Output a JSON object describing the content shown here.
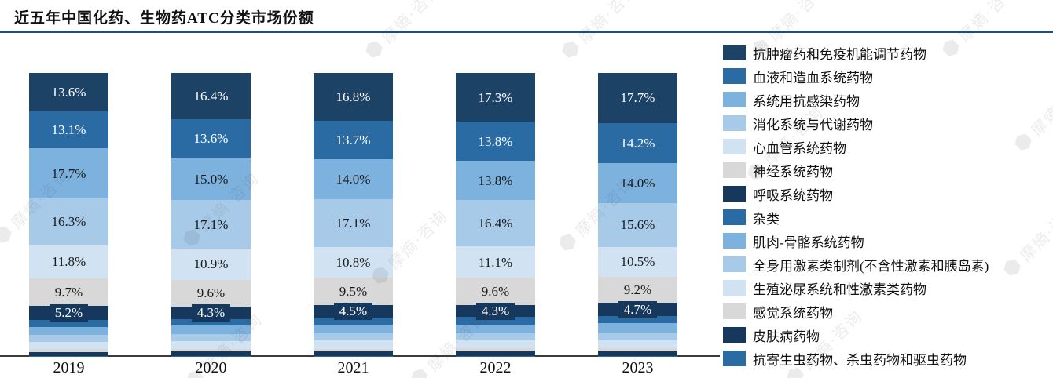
{
  "title": "近五年中国化药、生物药ATC分类市场份额",
  "watermark": {
    "text": "摩熵·咨询",
    "badge": "⬢"
  },
  "chart_data": {
    "type": "bar",
    "stacked": true,
    "title": "近五年中国化药、生物药ATC分类市场份额",
    "xlabel": "",
    "ylabel": "",
    "ylim": [
      0,
      100
    ],
    "grid": false,
    "legend_position": "right",
    "value_suffix": "%",
    "categories": [
      "2019",
      "2020",
      "2021",
      "2022",
      "2023"
    ],
    "series": [
      {
        "name": "抗肿瘤药和免疫机能调节药物",
        "color": "#1C4265",
        "label_color": "#FFFFFF",
        "labeled": true,
        "boxed": false,
        "values": [
          13.6,
          16.4,
          16.8,
          17.3,
          17.7
        ]
      },
      {
        "name": "血液和造血系统药物",
        "color": "#2B6BA4",
        "label_color": "#FFFFFF",
        "labeled": true,
        "boxed": false,
        "values": [
          13.1,
          13.6,
          13.7,
          13.8,
          14.2
        ]
      },
      {
        "name": "系统用抗感染药物",
        "color": "#7DB2DE",
        "label_color": "#1A1A1A",
        "labeled": true,
        "boxed": false,
        "values": [
          17.7,
          15.0,
          14.0,
          13.8,
          14.0
        ]
      },
      {
        "name": "消化系统与代谢药物",
        "color": "#A8CAE9",
        "label_color": "#1A1A1A",
        "labeled": true,
        "boxed": false,
        "values": [
          16.3,
          17.1,
          17.1,
          16.4,
          15.6
        ]
      },
      {
        "name": "心血管系统药物",
        "color": "#D1E2F3",
        "label_color": "#1A1A1A",
        "labeled": true,
        "boxed": false,
        "values": [
          11.8,
          10.9,
          10.8,
          11.1,
          10.5
        ]
      },
      {
        "name": "神经系统药物",
        "color": "#D8D8D8",
        "label_color": "#1A1A1A",
        "labeled": true,
        "boxed": false,
        "values": [
          9.7,
          9.6,
          9.5,
          9.6,
          9.2
        ]
      },
      {
        "name": "呼吸系统药物",
        "color": "#16385D",
        "label_color": "#FFFFFF",
        "labeled": true,
        "boxed": true,
        "values": [
          5.2,
          4.3,
          4.5,
          4.3,
          4.7
        ]
      },
      {
        "name": "杂类",
        "color": "#2B6BA4",
        "label_color": "#FFFFFF",
        "labeled": false,
        "boxed": false,
        "values": [
          2.3,
          2.4,
          2.5,
          2.5,
          2.6
        ]
      },
      {
        "name": "肌肉-骨骼系统药物",
        "color": "#7DB2DE",
        "label_color": "#1A1A1A",
        "labeled": false,
        "boxed": false,
        "values": [
          2.9,
          3.0,
          3.1,
          3.1,
          3.2
        ]
      },
      {
        "name": "全身用激素类制剂(不含性激素和胰岛素)",
        "color": "#A8CAE9",
        "label_color": "#1A1A1A",
        "labeled": false,
        "boxed": false,
        "values": [
          2.4,
          2.5,
          2.6,
          2.6,
          2.7
        ]
      },
      {
        "name": "生殖泌尿系统和性激素类药物",
        "color": "#D1E2F3",
        "label_color": "#1A1A1A",
        "labeled": false,
        "boxed": false,
        "values": [
          2.6,
          2.7,
          2.8,
          2.8,
          2.9
        ]
      },
      {
        "name": "感觉系统药物",
        "color": "#D8D8D8",
        "label_color": "#1A1A1A",
        "labeled": false,
        "boxed": false,
        "values": [
          0.9,
          0.9,
          1.0,
          1.0,
          1.0
        ]
      },
      {
        "name": "皮肤病药物",
        "color": "#16385D",
        "label_color": "#FFFFFF",
        "labeled": false,
        "boxed": false,
        "values": [
          1.4,
          1.5,
          1.5,
          1.6,
          1.6
        ]
      },
      {
        "name": "抗寄生虫药物、杀虫药物和驱虫药物",
        "color": "#2B6BA4",
        "label_color": "#FFFFFF",
        "labeled": false,
        "boxed": false,
        "values": [
          0.1,
          0.1,
          0.1,
          0.1,
          0.1
        ]
      }
    ]
  }
}
